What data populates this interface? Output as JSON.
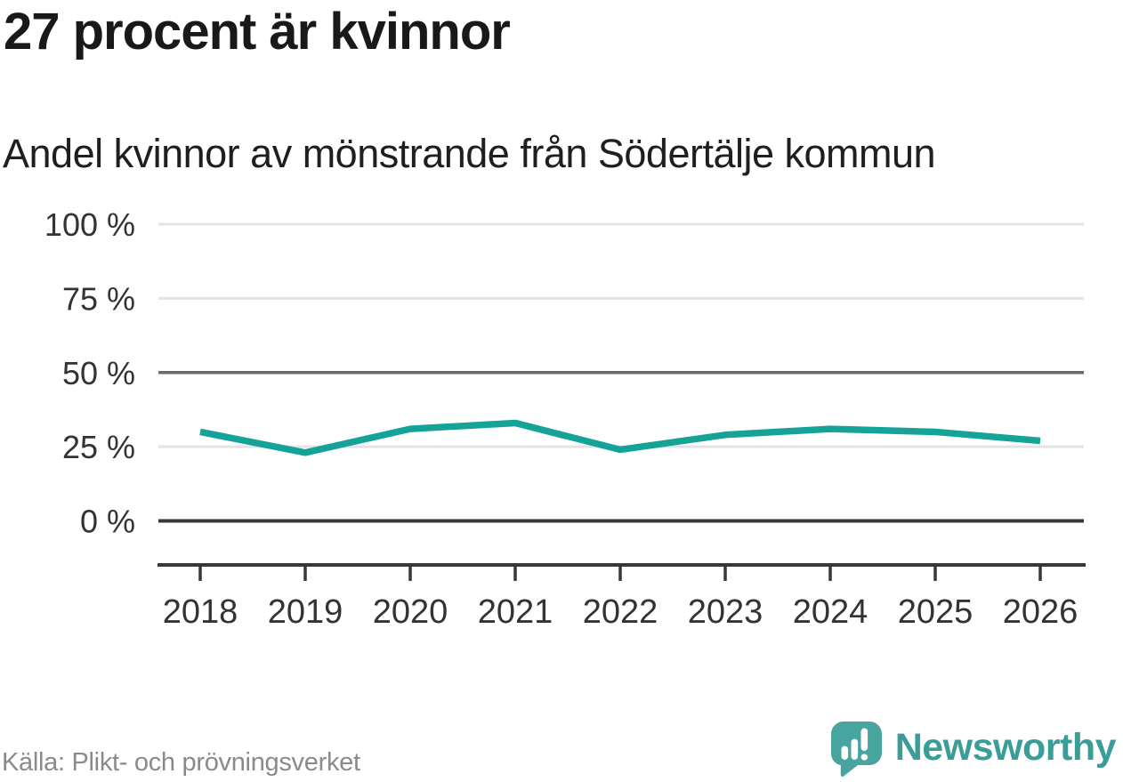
{
  "title": "27 procent är kvinnor",
  "subtitle": "Andel kvinnor av mönstrande från Södertälje kommun",
  "source": "Källa: Plikt- och prövningsverket",
  "brand": {
    "name": "Newsworthy",
    "icon": "newsworthy-speech-bubble-bar-chart-icon",
    "icon_color": "#48a49f",
    "text_color": "#3a9d98"
  },
  "chart_data": {
    "type": "line",
    "title": "27 procent är kvinnor",
    "subtitle": "Andel kvinnor av mönstrande från Södertälje kommun",
    "categories": [
      "2018",
      "2019",
      "2020",
      "2021",
      "2022",
      "2023",
      "2024",
      "2025",
      "2026"
    ],
    "series": [
      {
        "name": "Andel kvinnor av mönstrande",
        "values": [
          30,
          23,
          31,
          33,
          24,
          29,
          31,
          30,
          27
        ]
      }
    ],
    "unit": "%",
    "xlabel": "",
    "ylabel": "",
    "ylim": [
      0,
      100
    ],
    "yticks": [
      0,
      25,
      50,
      75,
      100
    ],
    "ytick_labels": [
      "0 %",
      "25 %",
      "50 %",
      "75 %",
      "100 %"
    ],
    "grid": true,
    "emphasized_gridline": 50,
    "baseline_gridline": 0,
    "legend_position": "none",
    "colors": {
      "line": "#14a396",
      "grid_light": "#e3e3e3",
      "grid_emphasis": "#6a6a6a",
      "axis": "#383838",
      "tick_text": "#333333"
    }
  }
}
